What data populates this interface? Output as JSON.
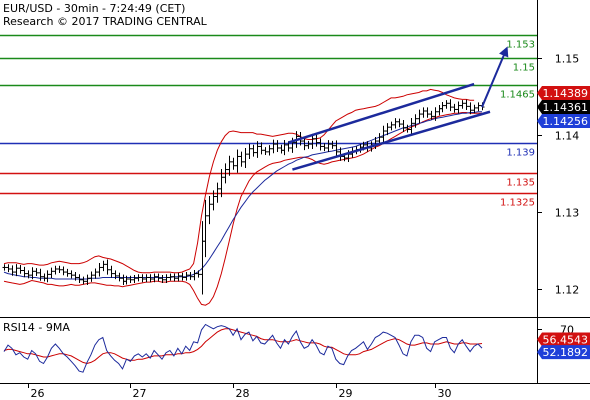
{
  "header": {
    "title": "EUR/USD - 30min - 7:24:49 (CET)",
    "credit": "Research © 2017 TRADING CENTRAL"
  },
  "colors": {
    "price": "#000000",
    "bollinger": "#cc0000",
    "moving_average": "#1c2a9c",
    "resistance": "#1a8a1a",
    "pivot": "#1f2fb5",
    "support": "#d21010",
    "channel": "#1c2a9c",
    "rsi": "#1c2a9c",
    "rsi_ma": "#cc0000",
    "axis": "#000000",
    "tag_high": "#d21010",
    "tag_last": "#000000",
    "tag_low": "#1f3fd8",
    "tag_rsi": "#1f3fd8",
    "tag_rsi_ma": "#d21010"
  },
  "chart_data": [
    {
      "type": "line",
      "name": "price-panel",
      "x_labels": [
        "26",
        "27",
        "28",
        "29",
        "30"
      ],
      "y_ticks": [
        1.12,
        1.13,
        1.14,
        1.15
      ],
      "y_tick_labels": [
        "1.12",
        "1.13",
        "1.14",
        "1.15"
      ],
      "ylim": [
        1.1165,
        1.1575
      ],
      "levels": [
        {
          "value": 1.153,
          "label": "1.153",
          "role": "resistance"
        },
        {
          "value": 1.15,
          "label": "1.15",
          "role": "resistance"
        },
        {
          "value": 1.1465,
          "label": "1.1465",
          "role": "resistance"
        },
        {
          "value": 1.139,
          "label": "1.139",
          "role": "pivot"
        },
        {
          "value": 1.135,
          "label": "1.135",
          "role": "support"
        },
        {
          "value": 1.1325,
          "label": "1.1325",
          "role": "support"
        }
      ],
      "price_tags": [
        {
          "value": 1.14389,
          "label": "1.14389",
          "role": "high"
        },
        {
          "value": 1.14361,
          "label": "1.14361",
          "role": "last"
        },
        {
          "value": 1.14256,
          "label": "1.14256",
          "role": "low"
        }
      ],
      "close": [
        1.1228,
        1.1226,
        1.1222,
        1.1227,
        1.1224,
        1.122,
        1.1218,
        1.1223,
        1.1221,
        1.1216,
        1.1214,
        1.1219,
        1.1223,
        1.1226,
        1.1225,
        1.1222,
        1.122,
        1.1218,
        1.1215,
        1.1212,
        1.121,
        1.1214,
        1.1218,
        1.1222,
        1.1228,
        1.1232,
        1.1225,
        1.122,
        1.1217,
        1.1214,
        1.121,
        1.1213,
        1.1212,
        1.1214,
        1.1215,
        1.1213,
        1.1215,
        1.1213,
        1.1216,
        1.1214,
        1.1212,
        1.1215,
        1.1216,
        1.1214,
        1.1217,
        1.1215,
        1.1218,
        1.1216,
        1.122,
        1.1219,
        1.1262,
        1.1295,
        1.131,
        1.132,
        1.133,
        1.1345,
        1.1355,
        1.1365,
        1.136,
        1.1372,
        1.1365,
        1.1375,
        1.1382,
        1.1377,
        1.1385,
        1.138,
        1.1378,
        1.1382,
        1.1388,
        1.1383,
        1.138,
        1.1387,
        1.1383,
        1.139,
        1.1398,
        1.1392,
        1.1386,
        1.1388,
        1.1395,
        1.139,
        1.1385,
        1.1383,
        1.1388,
        1.1386,
        1.1378,
        1.1372,
        1.137,
        1.1375,
        1.1379,
        1.1381,
        1.1384,
        1.1387,
        1.1383,
        1.1387,
        1.1392,
        1.1397,
        1.1405,
        1.141,
        1.1413,
        1.1417,
        1.1414,
        1.1409,
        1.1407,
        1.1415,
        1.1421,
        1.1427,
        1.1431,
        1.1427,
        1.1424,
        1.143,
        1.1434,
        1.1438,
        1.1441,
        1.1436,
        1.1433,
        1.1438,
        1.1441,
        1.1437,
        1.1432,
        1.1435,
        1.1438,
        1.14361
      ],
      "bollinger_upper": [
        1.1233,
        1.1234,
        1.1234,
        1.1234,
        1.1233,
        1.1232,
        1.1233,
        1.1233,
        1.1232,
        1.1231,
        1.1231,
        1.1232,
        1.1234,
        1.1235,
        1.1236,
        1.1235,
        1.1234,
        1.1233,
        1.1233,
        1.1233,
        1.1234,
        1.1236,
        1.1239,
        1.1242,
        1.1243,
        1.1241,
        1.124,
        1.1239,
        1.1237,
        1.1235,
        1.1233,
        1.123,
        1.1227,
        1.1224,
        1.1222,
        1.1221,
        1.1221,
        1.1221,
        1.1222,
        1.1222,
        1.1222,
        1.1222,
        1.1222,
        1.1221,
        1.1221,
        1.1222,
        1.1224,
        1.1226,
        1.1233,
        1.126,
        1.1295,
        1.1322,
        1.1346,
        1.1365,
        1.138,
        1.1391,
        1.1399,
        1.1404,
        1.1405,
        1.1404,
        1.1403,
        1.1403,
        1.1403,
        1.1403,
        1.1401,
        1.1401,
        1.14,
        1.1399,
        1.1398,
        1.1399,
        1.14,
        1.1401,
        1.1402,
        1.1402,
        1.1401,
        1.1398,
        1.1395,
        1.1394,
        1.1394,
        1.1395,
        1.1396,
        1.14,
        1.1406,
        1.1412,
        1.1418,
        1.1421,
        1.1424,
        1.1427,
        1.1429,
        1.1432,
        1.1433,
        1.1434,
        1.1435,
        1.1436,
        1.1437,
        1.1439,
        1.1442,
        1.1445,
        1.1448,
        1.1448,
        1.1449,
        1.145,
        1.1452,
        1.1453,
        1.1454,
        1.1455,
        1.1457,
        1.1457,
        1.1459,
        1.1458,
        1.1457,
        1.1455,
        1.1452,
        1.145,
        1.1448,
        1.1447,
        1.1446,
        1.1446,
        1.1445,
        1.1445
      ],
      "bollinger_lower": [
        1.121,
        1.1209,
        1.1208,
        1.1207,
        1.1206,
        1.1207,
        1.1209,
        1.1211,
        1.121,
        1.1209,
        1.1208,
        1.1206,
        1.1206,
        1.1205,
        1.1204,
        1.1204,
        1.1205,
        1.1206,
        1.1205,
        1.1205,
        1.1206,
        1.1207,
        1.1208,
        1.1208,
        1.1207,
        1.1206,
        1.1205,
        1.1205,
        1.1204,
        1.1204,
        1.1203,
        1.1204,
        1.1205,
        1.1206,
        1.1207,
        1.1208,
        1.1209,
        1.1209,
        1.121,
        1.121,
        1.1209,
        1.1209,
        1.121,
        1.121,
        1.121,
        1.121,
        1.1209,
        1.1206,
        1.1198,
        1.1188,
        1.118,
        1.1179,
        1.1182,
        1.119,
        1.1203,
        1.122,
        1.124,
        1.1262,
        1.1284,
        1.1304,
        1.132,
        1.133,
        1.134,
        1.1347,
        1.1352,
        1.1355,
        1.1358,
        1.1361,
        1.1363,
        1.1364,
        1.1365,
        1.1367,
        1.1368,
        1.1369,
        1.137,
        1.1371,
        1.1371,
        1.137,
        1.1368,
        1.1365,
        1.1363,
        1.1362,
        1.1363,
        1.1365,
        1.1366,
        1.1367,
        1.1368,
        1.1369,
        1.137,
        1.1371,
        1.1373,
        1.1375,
        1.1378,
        1.1381,
        1.1384,
        1.1386,
        1.1389,
        1.1392,
        1.1395,
        1.1398,
        1.1401,
        1.1404,
        1.1407,
        1.141,
        1.1412,
        1.1414,
        1.1417,
        1.1419,
        1.1421,
        1.1422,
        1.1424,
        1.1425,
        1.1426,
        1.1427,
        1.1428,
        1.1428,
        1.1429,
        1.1429,
        1.1428,
        1.1428,
        1.1428,
        1.1428
      ],
      "moving_average": [
        1.1222,
        1.122,
        1.1219,
        1.1218,
        1.1217,
        1.1216,
        1.1216,
        1.1215,
        1.1215,
        1.1214,
        1.1214,
        1.1214,
        1.1214,
        1.1213,
        1.1213,
        1.1213,
        1.1213,
        1.1213,
        1.1213,
        1.1213,
        1.1213,
        1.1213,
        1.1214,
        1.1214,
        1.1214,
        1.1215,
        1.1215,
        1.1215,
        1.1215,
        1.1215,
        1.1215,
        1.1215,
        1.1215,
        1.1215,
        1.1215,
        1.1215,
        1.1215,
        1.1215,
        1.1215,
        1.1215,
        1.1215,
        1.1215,
        1.1215,
        1.1216,
        1.1216,
        1.1216,
        1.1216,
        1.1217,
        1.1219,
        1.1222,
        1.1226,
        1.1232,
        1.1239,
        1.1247,
        1.1255,
        1.1263,
        1.1272,
        1.1281,
        1.129,
        1.1298,
        1.1306,
        1.1313,
        1.132,
        1.1326,
        1.1331,
        1.1336,
        1.1341,
        1.1345,
        1.1349,
        1.1353,
        1.1356,
        1.1359,
        1.1362,
        1.1364,
        1.1367,
        1.1369,
        1.1371,
        1.1372,
        1.1374,
        1.1375,
        1.1376,
        1.1377,
        1.1378,
        1.1379,
        1.138,
        1.1381,
        1.1382,
        1.1383,
        1.1384,
        1.1385,
        1.1387,
        1.1389,
        1.1391,
        1.1393,
        1.1395,
        1.1397,
        1.1399,
        1.1401,
        1.1403,
        1.1405,
        1.1407,
        1.1409,
        1.141,
        1.1412,
        1.1413,
        1.1415,
        1.1416,
        1.1418,
        1.1419,
        1.1421,
        1.1422,
        1.1423,
        1.1424,
        1.1425,
        1.1426,
        1.1427,
        1.1428,
        1.1428,
        1.1429,
        1.1429,
        1.143,
        1.143
      ]
    },
    {
      "type": "line",
      "name": "rsi-panel",
      "title": "RSI14 - 9MA",
      "y_ticks": [
        70
      ],
      "y_tick_labels": [
        "70"
      ],
      "ylim": [
        20,
        80
      ],
      "value_tags": [
        {
          "value": 56.4543,
          "label": "56.4543",
          "role": "rsi_ma"
        },
        {
          "value": 52.1892,
          "label": "52.1892",
          "role": "rsi"
        }
      ],
      "rsi": [
        49,
        55,
        52,
        46,
        48,
        44,
        42,
        50,
        47,
        40,
        38,
        44,
        52,
        56,
        52,
        47,
        44,
        40,
        36,
        31,
        30,
        39,
        46,
        55,
        60,
        62,
        50,
        45,
        41,
        38,
        33,
        42,
        40,
        45,
        47,
        44,
        47,
        43,
        50,
        46,
        42,
        48,
        50,
        45,
        52,
        47,
        54,
        50,
        58,
        57,
        69,
        74,
        72,
        70,
        72,
        73,
        72,
        70,
        64,
        70,
        60,
        65,
        67,
        59,
        63,
        57,
        56,
        60,
        64,
        57,
        52,
        60,
        56,
        63,
        68,
        58,
        52,
        54,
        60,
        55,
        48,
        46,
        54,
        52,
        42,
        38,
        37,
        45,
        50,
        52,
        55,
        58,
        51,
        56,
        62,
        64,
        67,
        66,
        64,
        62,
        55,
        47,
        45,
        58,
        64,
        64,
        62,
        52,
        49,
        58,
        60,
        62,
        62,
        52,
        48,
        56,
        60,
        54,
        49,
        54,
        56,
        52.1892
      ],
      "rsi_ma": [
        50,
        51,
        51,
        50,
        49,
        48,
        47,
        47,
        46,
        45,
        44,
        44,
        45,
        46,
        47,
        47,
        46,
        45,
        43,
        41,
        39,
        38,
        39,
        41,
        44,
        47,
        48,
        48,
        47,
        45,
        43,
        42,
        41,
        41,
        42,
        42,
        43,
        44,
        45,
        45,
        45,
        46,
        46,
        46,
        47,
        47,
        48,
        48,
        49,
        51,
        54,
        58,
        61,
        64,
        67,
        69,
        70,
        70,
        69,
        68,
        67,
        66,
        65,
        64,
        63,
        61,
        60,
        60,
        60,
        59,
        58,
        58,
        58,
        59,
        60,
        59,
        58,
        57,
        57,
        57,
        56,
        54,
        53,
        53,
        51,
        49,
        47,
        46,
        46,
        46,
        47,
        49,
        50,
        51,
        53,
        55,
        57,
        59,
        60,
        61,
        60,
        58,
        56,
        55,
        55,
        56,
        57,
        57,
        56,
        56,
        56,
        57,
        58,
        57,
        56,
        56,
        57,
        57,
        56,
        56,
        56,
        56.4543
      ]
    }
  ]
}
